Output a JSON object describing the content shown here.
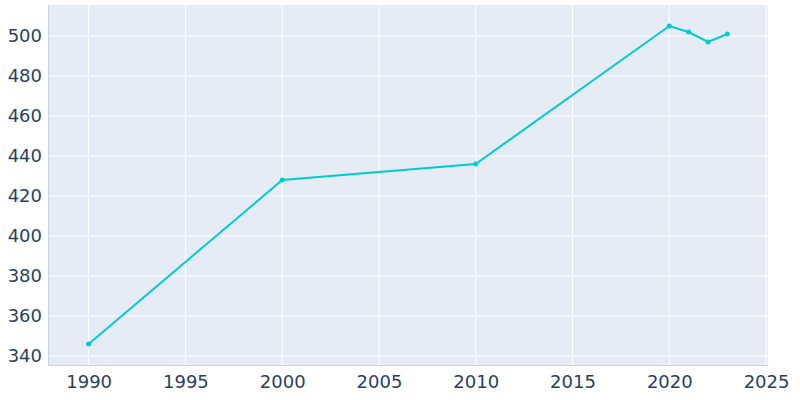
{
  "chart_data": {
    "type": "line",
    "x": [
      1990,
      2000,
      2010,
      2020,
      2021,
      2022,
      2023
    ],
    "values": [
      346,
      428,
      436,
      505,
      502,
      497,
      501
    ],
    "color": "#00cccc",
    "marker": "circle",
    "xlim": [
      1987.9,
      2025.1
    ],
    "xticks": [
      1990,
      1995,
      2000,
      2005,
      2010,
      2015,
      2020,
      2025
    ],
    "ylim": [
      335.5,
      515.5
    ],
    "yticks": [
      340,
      360,
      380,
      400,
      420,
      440,
      460,
      480,
      500
    ],
    "grid": true
  }
}
